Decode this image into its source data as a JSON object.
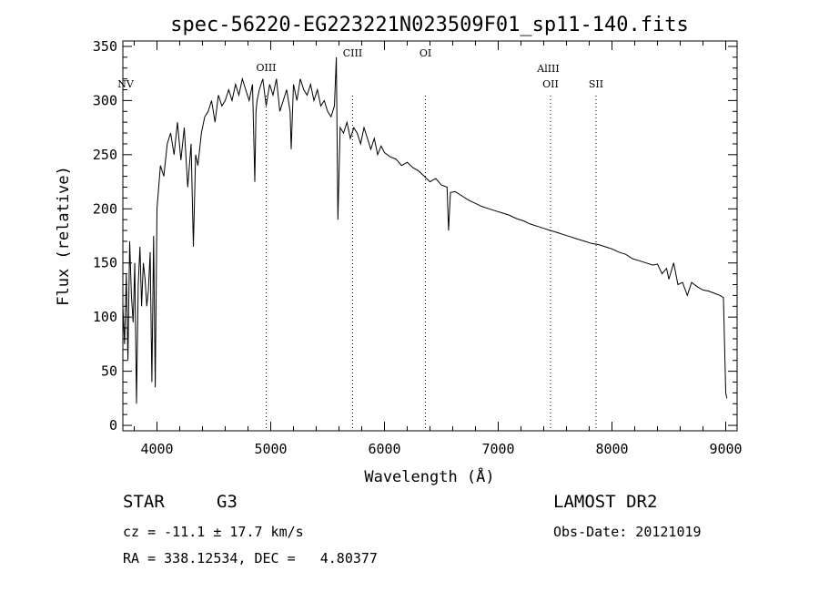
{
  "chart_data": {
    "type": "line",
    "title": "spec-56220-EG223221N023509F01_sp11-140.fits",
    "xlabel": "Wavelength (Å)",
    "ylabel": "Flux (relative)",
    "xlim": [
      3700,
      9100
    ],
    "ylim": [
      -5,
      355
    ],
    "x_ticks": [
      4000,
      5000,
      6000,
      7000,
      8000,
      9000
    ],
    "y_ticks": [
      0,
      50,
      100,
      150,
      200,
      250,
      300,
      350
    ],
    "series": [
      {
        "x": [
          3700,
          3715,
          3730,
          3745,
          3760,
          3775,
          3790,
          3805,
          3820,
          3835,
          3850,
          3865,
          3880,
          3895,
          3910,
          3925,
          3940,
          3955,
          3970,
          3985,
          4000,
          4030,
          4060,
          4090,
          4120,
          4150,
          4180,
          4210,
          4240,
          4270,
          4300,
          4320,
          4340,
          4360,
          4390,
          4420,
          4450,
          4480,
          4510,
          4540,
          4570,
          4600,
          4630,
          4660,
          4690,
          4720,
          4750,
          4780,
          4810,
          4840,
          4860,
          4870,
          4880,
          4900,
          4930,
          4960,
          4990,
          5020,
          5050,
          5080,
          5110,
          5140,
          5170,
          5180,
          5200,
          5230,
          5260,
          5290,
          5320,
          5350,
          5380,
          5410,
          5440,
          5470,
          5500,
          5530,
          5560,
          5577,
          5590,
          5610,
          5640,
          5670,
          5700,
          5730,
          5760,
          5790,
          5820,
          5850,
          5880,
          5910,
          5940,
          5970,
          6000,
          6050,
          6100,
          6150,
          6200,
          6250,
          6300,
          6350,
          6400,
          6450,
          6500,
          6550,
          6563,
          6580,
          6620,
          6680,
          6740,
          6800,
          6860,
          6920,
          6980,
          7040,
          7100,
          7160,
          7220,
          7280,
          7340,
          7400,
          7460,
          7520,
          7580,
          7640,
          7700,
          7760,
          7820,
          7880,
          7940,
          8000,
          8060,
          8120,
          8180,
          8240,
          8300,
          8360,
          8400,
          8440,
          8480,
          8500,
          8542,
          8580,
          8620,
          8662,
          8700,
          8750,
          8800,
          8850,
          8900,
          8950,
          8980,
          9000,
          9010
        ],
        "values": [
          110,
          75,
          140,
          60,
          170,
          120,
          95,
          150,
          20,
          130,
          165,
          110,
          150,
          135,
          110,
          125,
          160,
          40,
          175,
          35,
          200,
          240,
          230,
          260,
          270,
          250,
          280,
          245,
          275,
          220,
          260,
          165,
          250,
          240,
          270,
          285,
          290,
          300,
          280,
          305,
          295,
          300,
          310,
          300,
          315,
          305,
          320,
          310,
          300,
          315,
          225,
          290,
          300,
          310,
          320,
          295,
          315,
          305,
          320,
          290,
          300,
          310,
          290,
          255,
          315,
          300,
          320,
          310,
          305,
          315,
          300,
          310,
          295,
          300,
          290,
          285,
          295,
          340,
          190,
          275,
          270,
          280,
          265,
          275,
          270,
          260,
          275,
          265,
          255,
          265,
          250,
          258,
          252,
          248,
          246,
          240,
          243,
          238,
          235,
          230,
          225,
          228,
          222,
          220,
          180,
          215,
          216,
          212,
          208,
          205,
          202,
          200,
          198,
          196,
          194,
          191,
          189,
          186,
          184,
          182,
          180,
          178,
          176,
          174,
          172,
          170,
          168,
          167,
          165,
          163,
          160,
          158,
          154,
          152,
          150,
          148,
          149,
          140,
          145,
          135,
          150,
          130,
          132,
          120,
          132,
          128,
          125,
          124,
          122,
          120,
          118,
          30,
          25
        ]
      }
    ],
    "line_markers": [
      {
        "label": "NV",
        "x": 3700
      },
      {
        "label": "OIII",
        "x": 4960
      },
      {
        "label": "CIII",
        "x": 5720
      },
      {
        "label": "OI",
        "x": 6360
      },
      {
        "label": "AlIII",
        "x": 7440
      },
      {
        "label": "OII",
        "x": 7460
      },
      {
        "label": "SII",
        "x": 7860
      }
    ]
  },
  "info": {
    "class_label": "STAR",
    "subclass": "G3",
    "survey": "LAMOST DR2",
    "cz": "cz = -11.1 ± 17.7 km/s",
    "obs_date": "Obs-Date: 20121019",
    "radec": "RA = 338.12534, DEC =   4.80377"
  }
}
